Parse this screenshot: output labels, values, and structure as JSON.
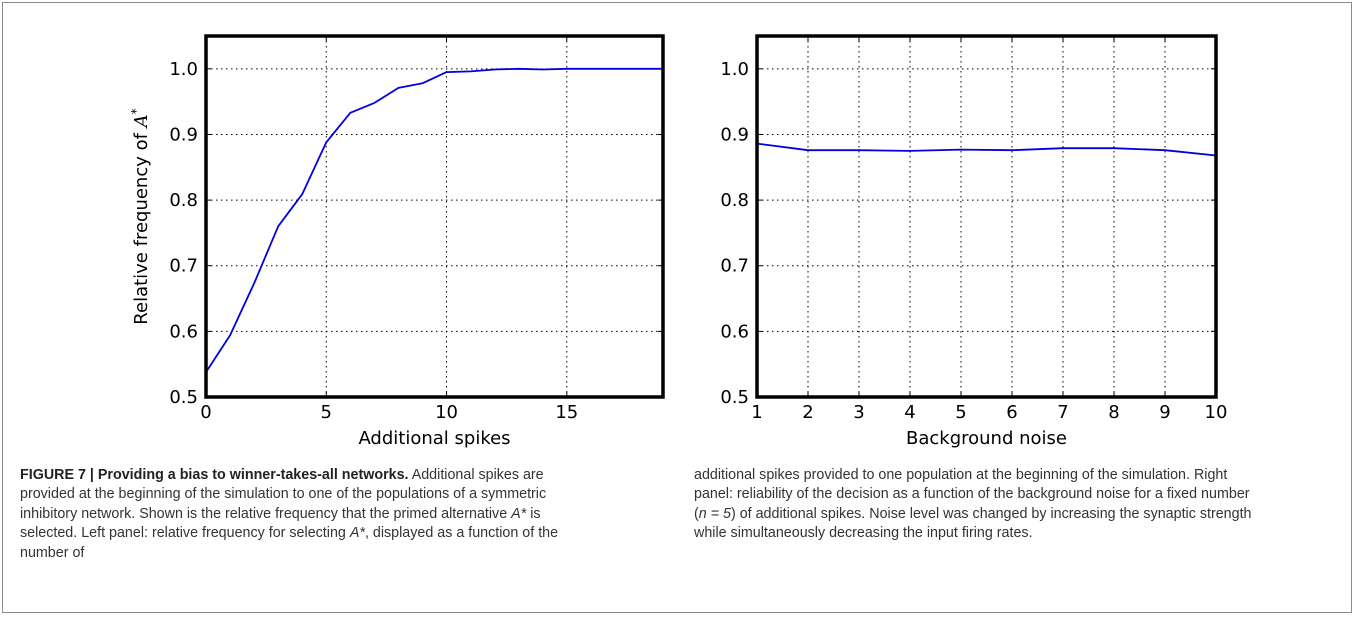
{
  "chart_data": [
    {
      "type": "line",
      "xlabel": "Additional spikes",
      "ylabel": "Relative frequency of A*",
      "xlim": [
        0,
        19
      ],
      "ylim": [
        0.5,
        1.05
      ],
      "xticks": [
        "0",
        "5",
        "10",
        "15"
      ],
      "yticks": [
        "0.5",
        "0.6",
        "0.7",
        "0.8",
        "0.9",
        "1.0"
      ],
      "grid": true,
      "line_color": "#0000dd",
      "x": [
        0,
        1,
        2,
        3,
        4,
        5,
        6,
        7,
        8,
        9,
        10,
        11,
        12,
        13,
        14,
        15,
        16,
        17,
        18,
        19
      ],
      "y": [
        0.538,
        0.594,
        0.673,
        0.76,
        0.809,
        0.888,
        0.933,
        0.948,
        0.971,
        0.978,
        0.995,
        0.996,
        0.999,
        1.0,
        0.999,
        1.0,
        1.0,
        1.0,
        1.0,
        1.0
      ]
    },
    {
      "type": "line",
      "xlabel": "Background noise",
      "ylabel": "",
      "xlim": [
        1,
        10
      ],
      "ylim": [
        0.5,
        1.05
      ],
      "xticks": [
        "1",
        "2",
        "3",
        "4",
        "5",
        "6",
        "7",
        "8",
        "9",
        "10"
      ],
      "yticks": [
        "0.5",
        "0.6",
        "0.7",
        "0.8",
        "0.9",
        "1.0"
      ],
      "grid": true,
      "line_color": "#0000dd",
      "x": [
        1,
        2,
        3,
        4,
        5,
        6,
        7,
        8,
        9,
        10
      ],
      "y": [
        0.886,
        0.876,
        0.876,
        0.875,
        0.877,
        0.876,
        0.879,
        0.879,
        0.876,
        0.868
      ]
    }
  ],
  "caption": {
    "label": "FIGURE 7 | Providing a bias to winner-takes-all networks.",
    "left_1": " Additional spikes are provided at the beginning of the simulation to one of the populations of a symmetric inhibitory network. Shown is the relative frequency that the primed alternative ",
    "sym_1": "A*",
    "left_2": " is selected. Left panel: relative frequency for selecting ",
    "sym_2": "A*",
    "left_3": ", displayed as a function of the number of",
    "right_1": "additional spikes provided to one population at the beginning of the simulation. Right panel: reliability of the decision as a function of the background noise for a fixed number (",
    "n_expr": "n = 5",
    "right_2": ") of additional spikes. Noise level was changed by increasing the synaptic strength while simultaneously decreasing the input firing rates."
  }
}
